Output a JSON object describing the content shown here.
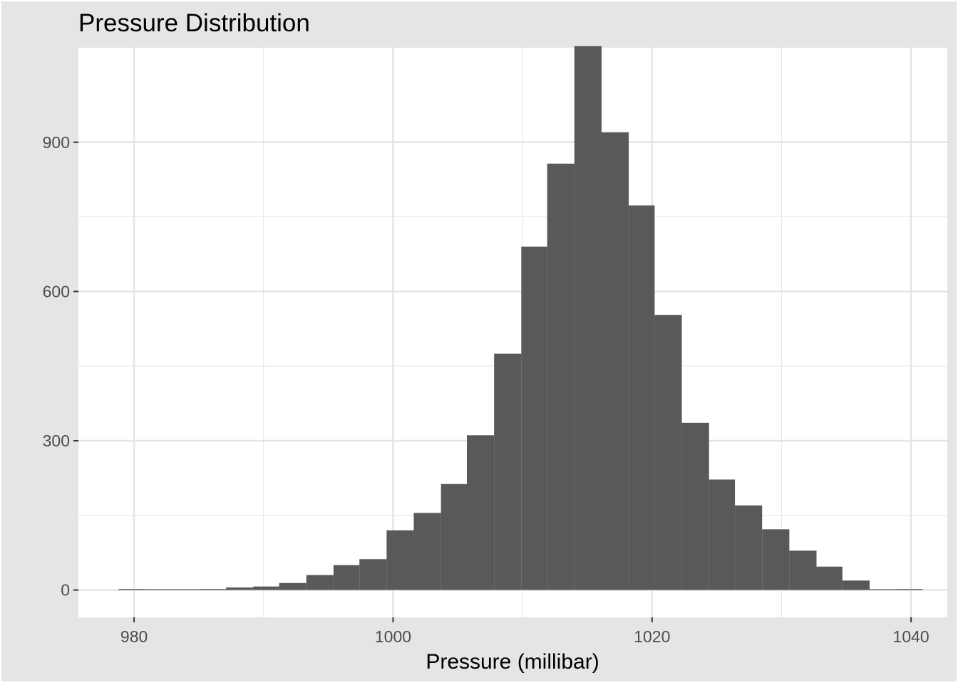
{
  "chart_data": {
    "type": "bar",
    "subtype": "histogram",
    "title": "Pressure Distribution",
    "xlabel": "Pressure (millibar)",
    "ylabel": "",
    "xlim": [
      975.7,
      1042.8
    ],
    "ylim": [
      -55,
      1090
    ],
    "xticks": [
      980,
      1000,
      1020,
      1040
    ],
    "yticks": [
      0,
      300,
      600,
      900
    ],
    "grid": true,
    "bin_width": 2.07,
    "bins": [
      {
        "x0": 978.8,
        "x1": 980.9,
        "count": 2
      },
      {
        "x0": 980.9,
        "x1": 982.9,
        "count": 0
      },
      {
        "x0": 982.9,
        "x1": 985.0,
        "count": 1
      },
      {
        "x0": 985.0,
        "x1": 987.1,
        "count": 2
      },
      {
        "x0": 987.1,
        "x1": 989.2,
        "count": 5
      },
      {
        "x0": 989.2,
        "x1": 991.2,
        "count": 7
      },
      {
        "x0": 991.2,
        "x1": 993.3,
        "count": 14
      },
      {
        "x0": 993.3,
        "x1": 995.4,
        "count": 30
      },
      {
        "x0": 995.4,
        "x1": 997.4,
        "count": 50
      },
      {
        "x0": 997.4,
        "x1": 999.5,
        "count": 62
      },
      {
        "x0": 999.5,
        "x1": 1001.6,
        "count": 120
      },
      {
        "x0": 1001.6,
        "x1": 1003.7,
        "count": 155
      },
      {
        "x0": 1003.7,
        "x1": 1005.7,
        "count": 213
      },
      {
        "x0": 1005.7,
        "x1": 1007.8,
        "count": 311
      },
      {
        "x0": 1007.8,
        "x1": 1009.9,
        "count": 475
      },
      {
        "x0": 1009.9,
        "x1": 1011.9,
        "count": 690
      },
      {
        "x0": 1011.9,
        "x1": 1014.0,
        "count": 857
      },
      {
        "x0": 1014.0,
        "x1": 1016.1,
        "count": 1093
      },
      {
        "x0": 1016.1,
        "x1": 1018.2,
        "count": 920
      },
      {
        "x0": 1018.2,
        "x1": 1020.2,
        "count": 773
      },
      {
        "x0": 1020.2,
        "x1": 1022.3,
        "count": 553
      },
      {
        "x0": 1022.3,
        "x1": 1024.4,
        "count": 336
      },
      {
        "x0": 1024.4,
        "x1": 1026.4,
        "count": 222
      },
      {
        "x0": 1026.4,
        "x1": 1028.5,
        "count": 170
      },
      {
        "x0": 1028.5,
        "x1": 1030.6,
        "count": 122
      },
      {
        "x0": 1030.6,
        "x1": 1032.7,
        "count": 79
      },
      {
        "x0": 1032.7,
        "x1": 1034.7,
        "count": 47
      },
      {
        "x0": 1034.7,
        "x1": 1036.8,
        "count": 19
      },
      {
        "x0": 1036.8,
        "x1": 1038.9,
        "count": 0
      },
      {
        "x0": 1038.9,
        "x1": 1040.9,
        "count": 2
      }
    ],
    "colors": {
      "bar": "#595959",
      "panel": "#ffffff",
      "plot_background": "#e5e5e5",
      "grid": "#e5e5e5",
      "tick_label": "#4d4d4d",
      "tick_mark": "#333333",
      "text": "#000000"
    }
  }
}
